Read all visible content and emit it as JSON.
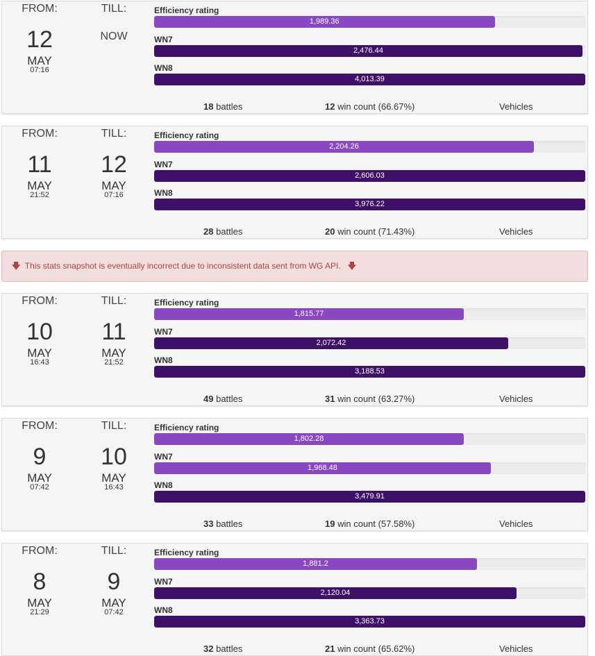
{
  "labels": {
    "from": "FROM:",
    "till": "TILL:",
    "now": "NOW",
    "battles_suffix": "battles",
    "win_suffix": "win count",
    "vehicles": "Vehicles"
  },
  "warning": {
    "text": "This stats snapshot is eventually incorrect due to inconsistent data sent from WG API.",
    "icon": "arrow-down-icon"
  },
  "colors": {
    "efficiency": "#8a47c2",
    "wn": "#3f1068",
    "warning_bg": "#f2dede",
    "warning_text": "#a94442"
  },
  "snapshots": [
    {
      "from": {
        "day": "12",
        "month": "MAY",
        "time": "07:16"
      },
      "till": {
        "now": true
      },
      "metrics": [
        {
          "name": "Efficiency rating",
          "value": "1,989.36",
          "fraction": 0.7899
        },
        {
          "name": "WN7",
          "value": "2,476.44",
          "fraction": 0.9937
        },
        {
          "name": "WN8",
          "value": "4,013.39",
          "fraction": 1.0
        }
      ],
      "battles": "18",
      "wins": "12",
      "win_pct": "(66.67%)"
    },
    {
      "from": {
        "day": "11",
        "month": "MAY",
        "time": "21:52"
      },
      "till": {
        "day": "12",
        "month": "MAY",
        "time": "07:16"
      },
      "metrics": [
        {
          "name": "Efficiency rating",
          "value": "2,204.26",
          "fraction": 0.8808
        },
        {
          "name": "WN7",
          "value": "2,606.03",
          "fraction": 1.0
        },
        {
          "name": "WN8",
          "value": "3,976.22",
          "fraction": 1.0
        }
      ],
      "battles": "28",
      "wins": "20",
      "win_pct": "(71.43%)"
    },
    {
      "from": {
        "day": "10",
        "month": "MAY",
        "time": "16:43"
      },
      "till": {
        "day": "11",
        "month": "MAY",
        "time": "21:52"
      },
      "metrics": [
        {
          "name": "Efficiency rating",
          "value": "1,815.77",
          "fraction": 0.7182
        },
        {
          "name": "WN7",
          "value": "2,072.42",
          "fraction": 0.8213
        },
        {
          "name": "WN8",
          "value": "3,188.53",
          "fraction": 1.0
        }
      ],
      "battles": "49",
      "wins": "31",
      "win_pct": "(63.27%)"
    },
    {
      "from": {
        "day": "9",
        "month": "MAY",
        "time": "07:42"
      },
      "till": {
        "day": "10",
        "month": "MAY",
        "time": "16:43"
      },
      "metrics": [
        {
          "name": "Efficiency rating",
          "value": "1,802.28",
          "fraction": 0.7182
        },
        {
          "name": "WN7",
          "value": "1,968.48",
          "fraction": 0.781
        },
        {
          "name": "WN8",
          "value": "3,479.91",
          "fraction": 1.0
        }
      ],
      "battles": "33",
      "wins": "19",
      "win_pct": "(57.58%)"
    },
    {
      "from": {
        "day": "8",
        "month": "MAY",
        "time": "21:29"
      },
      "till": {
        "day": "9",
        "month": "MAY",
        "time": "07:42"
      },
      "metrics": [
        {
          "name": "Efficiency rating",
          "value": "1,881.2",
          "fraction": 0.7488
        },
        {
          "name": "WN7",
          "value": "2,120.04",
          "fraction": 0.8406
        },
        {
          "name": "WN8",
          "value": "3,363.73",
          "fraction": 1.0
        }
      ],
      "battles": "32",
      "wins": "21",
      "win_pct": "(65.62%)"
    }
  ]
}
